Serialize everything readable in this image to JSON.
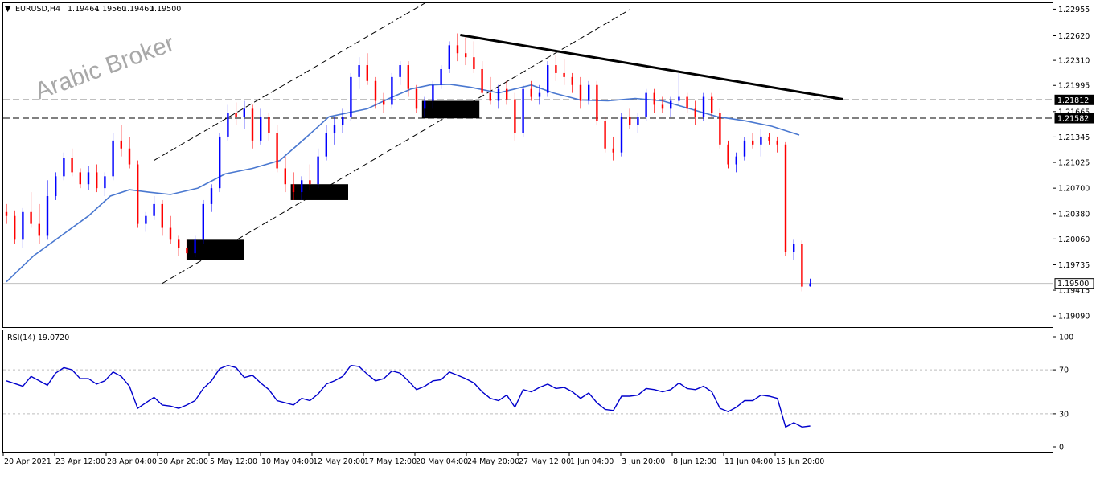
{
  "header": {
    "symbol": "EURUSD,H4",
    "open": "1.19464",
    "high": "1.19560",
    "low": "1.19460",
    "close": "1.19500"
  },
  "watermark": "Arabic Broker",
  "colors": {
    "bull": "#0000ff",
    "bear": "#ff0000",
    "ma": "#4a78d0",
    "rsi": "#0000cc",
    "trendline": "#000000",
    "zone": "#000000"
  },
  "chart_data": [
    {
      "type": "candlestick",
      "title": "EURUSD,H4",
      "y_ticks": [
        "1.22955",
        "1.22620",
        "1.22310",
        "1.21995",
        "1.21665",
        "1.21345",
        "1.21025",
        "1.20700",
        "1.20380",
        "1.20060",
        "1.19735",
        "1.19415",
        "1.19090"
      ],
      "ylim": [
        1.1895,
        1.2303
      ],
      "x_ticks": [
        "20 Apr 2021",
        "23 Apr 12:00",
        "28 Apr 04:00",
        "30 Apr 20:00",
        "5 May 12:00",
        "10 May 04:00",
        "12 May 20:00",
        "17 May 12:00",
        "20 May 04:00",
        "24 May 20:00",
        "27 May 12:00",
        "1 Jun 04:00",
        "3 Jun 20:00",
        "8 Jun 12:00",
        "11 Jun 04:00",
        "15 Jun 20:00"
      ],
      "price_labels": [
        {
          "label": "1.21812",
          "value": 1.21812,
          "style": "dashed-line"
        },
        {
          "label": "1.21582",
          "value": 1.21582,
          "style": "dashed-line"
        },
        {
          "label": "1.19500",
          "value": 1.195,
          "style": "current-price"
        }
      ],
      "moving_average": {
        "name": "",
        "x": [
          0,
          10,
          20,
          30,
          38,
          45,
          52,
          60,
          70,
          80,
          90,
          100,
          110,
          118,
          125,
          132,
          140,
          148,
          155,
          162,
          170,
          180,
          186,
          192,
          200,
          210,
          220,
          230,
          240,
          250,
          260,
          270,
          280,
          290
        ],
        "values": [
          1.1952,
          1.1985,
          1.201,
          1.2035,
          1.206,
          1.2068,
          1.2065,
          1.2062,
          1.207,
          1.2088,
          1.2095,
          1.2105,
          1.2135,
          1.216,
          1.2165,
          1.217,
          1.2183,
          1.2195,
          1.22,
          1.2201,
          1.2197,
          1.219,
          1.2195,
          1.22,
          1.219,
          1.2181,
          1.218,
          1.2183,
          1.218,
          1.217,
          1.216,
          1.2155,
          1.2148,
          1.2137
        ]
      },
      "bars": [
        {
          "x": 0,
          "o": 1.204,
          "h": 1.205,
          "l": 1.2025,
          "c": 1.2035
        },
        {
          "x": 3,
          "o": 1.2035,
          "h": 1.2042,
          "l": 1.2,
          "c": 1.2005
        },
        {
          "x": 6,
          "o": 1.2005,
          "h": 1.2045,
          "l": 1.1995,
          "c": 1.204
        },
        {
          "x": 9,
          "o": 1.204,
          "h": 1.2065,
          "l": 1.202,
          "c": 1.2025
        },
        {
          "x": 12,
          "o": 1.2025,
          "h": 1.205,
          "l": 1.2,
          "c": 1.201
        },
        {
          "x": 15,
          "o": 1.201,
          "h": 1.208,
          "l": 1.2005,
          "c": 1.206
        },
        {
          "x": 18,
          "o": 1.206,
          "h": 1.209,
          "l": 1.2055,
          "c": 1.2085
        },
        {
          "x": 21,
          "o": 1.2085,
          "h": 1.2115,
          "l": 1.208,
          "c": 1.2108
        },
        {
          "x": 24,
          "o": 1.2108,
          "h": 1.212,
          "l": 1.2085,
          "c": 1.209
        },
        {
          "x": 27,
          "o": 1.209,
          "h": 1.2095,
          "l": 1.207,
          "c": 1.2075
        },
        {
          "x": 30,
          "o": 1.2075,
          "h": 1.2098,
          "l": 1.2068,
          "c": 1.209
        },
        {
          "x": 33,
          "o": 1.209,
          "h": 1.21,
          "l": 1.2065,
          "c": 1.207
        },
        {
          "x": 36,
          "o": 1.207,
          "h": 1.209,
          "l": 1.206,
          "c": 1.2085
        },
        {
          "x": 39,
          "o": 1.2085,
          "h": 1.214,
          "l": 1.208,
          "c": 1.213
        },
        {
          "x": 42,
          "o": 1.213,
          "h": 1.215,
          "l": 1.211,
          "c": 1.212
        },
        {
          "x": 45,
          "o": 1.212,
          "h": 1.2135,
          "l": 1.2095,
          "c": 1.21
        },
        {
          "x": 48,
          "o": 1.21,
          "h": 1.2105,
          "l": 1.202,
          "c": 1.2025
        },
        {
          "x": 51,
          "o": 1.2025,
          "h": 1.204,
          "l": 1.2015,
          "c": 1.2035
        },
        {
          "x": 54,
          "o": 1.2035,
          "h": 1.206,
          "l": 1.203,
          "c": 1.205
        },
        {
          "x": 57,
          "o": 1.205,
          "h": 1.2055,
          "l": 1.201,
          "c": 1.202
        },
        {
          "x": 60,
          "o": 1.202,
          "h": 1.2035,
          "l": 1.2,
          "c": 1.2005
        },
        {
          "x": 63,
          "o": 1.2005,
          "h": 1.201,
          "l": 1.1985,
          "c": 1.1995
        },
        {
          "x": 66,
          "o": 1.1995,
          "h": 1.2005,
          "l": 1.198,
          "c": 1.1988
        },
        {
          "x": 69,
          "o": 1.1988,
          "h": 1.201,
          "l": 1.1983,
          "c": 1.2005
        },
        {
          "x": 72,
          "o": 1.2005,
          "h": 1.2055,
          "l": 1.2,
          "c": 1.205
        },
        {
          "x": 75,
          "o": 1.205,
          "h": 1.2075,
          "l": 1.204,
          "c": 1.207
        },
        {
          "x": 78,
          "o": 1.207,
          "h": 1.214,
          "l": 1.2065,
          "c": 1.2135
        },
        {
          "x": 81,
          "o": 1.2135,
          "h": 1.2175,
          "l": 1.213,
          "c": 1.2165
        },
        {
          "x": 84,
          "o": 1.2165,
          "h": 1.2178,
          "l": 1.215,
          "c": 1.216
        },
        {
          "x": 87,
          "o": 1.216,
          "h": 1.218,
          "l": 1.2145,
          "c": 1.217
        },
        {
          "x": 90,
          "o": 1.217,
          "h": 1.2175,
          "l": 1.212,
          "c": 1.213
        },
        {
          "x": 93,
          "o": 1.213,
          "h": 1.217,
          "l": 1.2125,
          "c": 1.216
        },
        {
          "x": 96,
          "o": 1.216,
          "h": 1.2165,
          "l": 1.213,
          "c": 1.214
        },
        {
          "x": 99,
          "o": 1.214,
          "h": 1.215,
          "l": 1.209,
          "c": 1.2095
        },
        {
          "x": 102,
          "o": 1.2095,
          "h": 1.211,
          "l": 1.2065,
          "c": 1.2075
        },
        {
          "x": 105,
          "o": 1.2075,
          "h": 1.209,
          "l": 1.2055,
          "c": 1.2065
        },
        {
          "x": 108,
          "o": 1.2065,
          "h": 1.2085,
          "l": 1.2055,
          "c": 1.208
        },
        {
          "x": 111,
          "o": 1.208,
          "h": 1.21,
          "l": 1.2068,
          "c": 1.2075
        },
        {
          "x": 114,
          "o": 1.2075,
          "h": 1.212,
          "l": 1.207,
          "c": 1.211
        },
        {
          "x": 117,
          "o": 1.211,
          "h": 1.215,
          "l": 1.2105,
          "c": 1.214
        },
        {
          "x": 120,
          "o": 1.214,
          "h": 1.216,
          "l": 1.2125,
          "c": 1.215
        },
        {
          "x": 123,
          "o": 1.215,
          "h": 1.217,
          "l": 1.214,
          "c": 1.216
        },
        {
          "x": 126,
          "o": 1.216,
          "h": 1.2215,
          "l": 1.2155,
          "c": 1.221
        },
        {
          "x": 129,
          "o": 1.221,
          "h": 1.2235,
          "l": 1.2195,
          "c": 1.2225
        },
        {
          "x": 132,
          "o": 1.2225,
          "h": 1.224,
          "l": 1.22,
          "c": 1.2205
        },
        {
          "x": 135,
          "o": 1.2205,
          "h": 1.221,
          "l": 1.217,
          "c": 1.218
        },
        {
          "x": 138,
          "o": 1.218,
          "h": 1.219,
          "l": 1.2165,
          "c": 1.2175
        },
        {
          "x": 141,
          "o": 1.2175,
          "h": 1.2215,
          "l": 1.217,
          "c": 1.221
        },
        {
          "x": 144,
          "o": 1.221,
          "h": 1.223,
          "l": 1.22,
          "c": 1.2225
        },
        {
          "x": 147,
          "o": 1.2225,
          "h": 1.223,
          "l": 1.2185,
          "c": 1.2195
        },
        {
          "x": 150,
          "o": 1.2195,
          "h": 1.22,
          "l": 1.2165,
          "c": 1.217
        },
        {
          "x": 153,
          "o": 1.217,
          "h": 1.2185,
          "l": 1.216,
          "c": 1.218
        },
        {
          "x": 156,
          "o": 1.218,
          "h": 1.2205,
          "l": 1.217,
          "c": 1.22
        },
        {
          "x": 159,
          "o": 1.22,
          "h": 1.2225,
          "l": 1.2195,
          "c": 1.222
        },
        {
          "x": 162,
          "o": 1.222,
          "h": 1.2255,
          "l": 1.2215,
          "c": 1.225
        },
        {
          "x": 165,
          "o": 1.225,
          "h": 1.2265,
          "l": 1.223,
          "c": 1.224
        },
        {
          "x": 168,
          "o": 1.224,
          "h": 1.226,
          "l": 1.2225,
          "c": 1.2235
        },
        {
          "x": 171,
          "o": 1.2235,
          "h": 1.2255,
          "l": 1.2215,
          "c": 1.222
        },
        {
          "x": 174,
          "o": 1.222,
          "h": 1.223,
          "l": 1.2185,
          "c": 1.219
        },
        {
          "x": 177,
          "o": 1.219,
          "h": 1.221,
          "l": 1.2175,
          "c": 1.218
        },
        {
          "x": 180,
          "o": 1.218,
          "h": 1.22,
          "l": 1.217,
          "c": 1.2195
        },
        {
          "x": 183,
          "o": 1.2195,
          "h": 1.2205,
          "l": 1.2175,
          "c": 1.2182
        },
        {
          "x": 186,
          "o": 1.2182,
          "h": 1.219,
          "l": 1.213,
          "c": 1.214
        },
        {
          "x": 189,
          "o": 1.214,
          "h": 1.22,
          "l": 1.2135,
          "c": 1.2195
        },
        {
          "x": 192,
          "o": 1.2195,
          "h": 1.2205,
          "l": 1.218,
          "c": 1.2185
        },
        {
          "x": 195,
          "o": 1.2185,
          "h": 1.22,
          "l": 1.2175,
          "c": 1.219
        },
        {
          "x": 198,
          "o": 1.219,
          "h": 1.223,
          "l": 1.2185,
          "c": 1.2225
        },
        {
          "x": 201,
          "o": 1.2225,
          "h": 1.2238,
          "l": 1.2205,
          "c": 1.2215
        },
        {
          "x": 204,
          "o": 1.2215,
          "h": 1.2232,
          "l": 1.22,
          "c": 1.221
        },
        {
          "x": 207,
          "o": 1.221,
          "h": 1.2215,
          "l": 1.219,
          "c": 1.22
        },
        {
          "x": 210,
          "o": 1.22,
          "h": 1.221,
          "l": 1.217,
          "c": 1.218
        },
        {
          "x": 213,
          "o": 1.218,
          "h": 1.2205,
          "l": 1.2175,
          "c": 1.22
        },
        {
          "x": 216,
          "o": 1.22,
          "h": 1.2205,
          "l": 1.215,
          "c": 1.2155
        },
        {
          "x": 219,
          "o": 1.2155,
          "h": 1.216,
          "l": 1.2115,
          "c": 1.212
        },
        {
          "x": 222,
          "o": 1.212,
          "h": 1.2135,
          "l": 1.2105,
          "c": 1.2115
        },
        {
          "x": 225,
          "o": 1.2115,
          "h": 1.2165,
          "l": 1.211,
          "c": 1.216
        },
        {
          "x": 228,
          "o": 1.216,
          "h": 1.217,
          "l": 1.2145,
          "c": 1.215
        },
        {
          "x": 231,
          "o": 1.215,
          "h": 1.2165,
          "l": 1.214,
          "c": 1.216
        },
        {
          "x": 234,
          "o": 1.216,
          "h": 1.2195,
          "l": 1.2155,
          "c": 1.219
        },
        {
          "x": 237,
          "o": 1.219,
          "h": 1.2195,
          "l": 1.2165,
          "c": 1.2175
        },
        {
          "x": 240,
          "o": 1.2175,
          "h": 1.2185,
          "l": 1.2165,
          "c": 1.217
        },
        {
          "x": 243,
          "o": 1.217,
          "h": 1.2185,
          "l": 1.216,
          "c": 1.218
        },
        {
          "x": 246,
          "o": 1.218,
          "h": 1.2215,
          "l": 1.2175,
          "c": 1.2185
        },
        {
          "x": 249,
          "o": 1.2185,
          "h": 1.219,
          "l": 1.2165,
          "c": 1.217
        },
        {
          "x": 252,
          "o": 1.217,
          "h": 1.218,
          "l": 1.215,
          "c": 1.216
        },
        {
          "x": 255,
          "o": 1.216,
          "h": 1.219,
          "l": 1.2155,
          "c": 1.2185
        },
        {
          "x": 258,
          "o": 1.2185,
          "h": 1.219,
          "l": 1.216,
          "c": 1.2165
        },
        {
          "x": 261,
          "o": 1.2165,
          "h": 1.217,
          "l": 1.212,
          "c": 1.2125
        },
        {
          "x": 264,
          "o": 1.2125,
          "h": 1.213,
          "l": 1.2095,
          "c": 1.21
        },
        {
          "x": 267,
          "o": 1.21,
          "h": 1.2115,
          "l": 1.209,
          "c": 1.211
        },
        {
          "x": 270,
          "o": 1.211,
          "h": 1.2135,
          "l": 1.2105,
          "c": 1.213
        },
        {
          "x": 273,
          "o": 1.213,
          "h": 1.214,
          "l": 1.212,
          "c": 1.2125
        },
        {
          "x": 276,
          "o": 1.2125,
          "h": 1.2145,
          "l": 1.211,
          "c": 1.2135
        },
        {
          "x": 279,
          "o": 1.2135,
          "h": 1.214,
          "l": 1.2125,
          "c": 1.213
        },
        {
          "x": 282,
          "o": 1.213,
          "h": 1.2135,
          "l": 1.2115,
          "c": 1.2125
        },
        {
          "x": 285,
          "o": 1.2125,
          "h": 1.2128,
          "l": 1.1985,
          "c": 1.199
        },
        {
          "x": 288,
          "o": 1.199,
          "h": 1.2005,
          "l": 1.198,
          "c": 1.2
        },
        {
          "x": 291,
          "o": 1.2,
          "h": 1.2004,
          "l": 1.194,
          "c": 1.1946
        },
        {
          "x": 294,
          "o": 1.19464,
          "h": 1.1956,
          "l": 1.1946,
          "c": 1.195
        }
      ],
      "zones": [
        {
          "x_start": 66,
          "x_end": 87,
          "top": 1.2005,
          "bottom": 1.198
        },
        {
          "x_start": 104,
          "x_end": 125,
          "top": 1.2075,
          "bottom": 1.2055
        },
        {
          "x_start": 152,
          "x_end": 173,
          "top": 1.218,
          "bottom": 1.2158
        }
      ],
      "trendlines": [
        {
          "style": "solid-thick",
          "x1": 166,
          "y1": 1.2263,
          "x2": 306,
          "y2": 1.2182
        },
        {
          "style": "dashed",
          "x1": 57,
          "y1": 1.195,
          "x2": 228,
          "y2": 1.2295
        },
        {
          "style": "dashed",
          "x1": 54,
          "y1": 1.2105,
          "x2": 153,
          "y2": 1.2303
        }
      ]
    },
    {
      "type": "line",
      "title": "RSI(14) 19.0720",
      "y_ticks": [
        "100",
        "70",
        "30",
        "0"
      ],
      "ylim": [
        0,
        100
      ],
      "x": [
        0,
        6,
        9,
        12,
        15,
        18,
        21,
        24,
        27,
        30,
        33,
        36,
        39,
        42,
        45,
        48,
        51,
        54,
        57,
        60,
        63,
        66,
        69,
        72,
        75,
        78,
        81,
        84,
        87,
        90,
        93,
        96,
        99,
        102,
        105,
        108,
        111,
        114,
        117,
        120,
        123,
        126,
        129,
        132,
        135,
        138,
        141,
        144,
        147,
        150,
        153,
        156,
        159,
        162,
        165,
        168,
        171,
        174,
        177,
        180,
        183,
        186,
        189,
        192,
        195,
        198,
        201,
        204,
        207,
        210,
        213,
        216,
        219,
        222,
        225,
        228,
        231,
        234,
        237,
        240,
        243,
        246,
        249,
        252,
        255,
        258,
        261,
        264,
        267,
        270,
        273,
        276,
        279,
        282,
        285,
        288,
        291,
        294
      ],
      "values": [
        60,
        55,
        64,
        60,
        56,
        67,
        72,
        70,
        62,
        62,
        57,
        60,
        68,
        64,
        55,
        35,
        40,
        45,
        38,
        37,
        35,
        38,
        42,
        53,
        60,
        71,
        74,
        72,
        63,
        65,
        58,
        52,
        42,
        40,
        38,
        44,
        42,
        48,
        57,
        60,
        64,
        74,
        73,
        66,
        60,
        62,
        69,
        67,
        60,
        52,
        55,
        60,
        61,
        68,
        65,
        62,
        58,
        50,
        44,
        42,
        47,
        36,
        52,
        50,
        54,
        57,
        53,
        54,
        50,
        44,
        49,
        40,
        34,
        33,
        46,
        46,
        47,
        53,
        52,
        50,
        52,
        58,
        53,
        52,
        55,
        50,
        35,
        32,
        36,
        42,
        42,
        47,
        46,
        44,
        18,
        22,
        18,
        19
      ]
    }
  ]
}
